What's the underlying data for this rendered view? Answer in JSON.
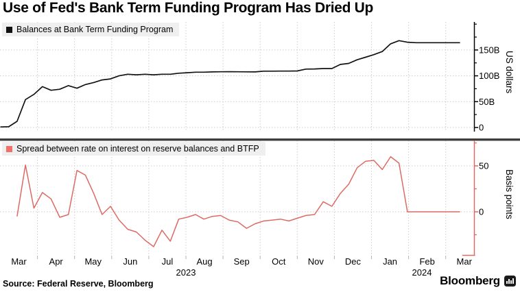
{
  "title": "Use of Fed's Bank Term Funding Program Has Dried Up",
  "panels": {
    "top": {
      "legend": "Balances at Bank Term Funding Program",
      "axis_title": "US dollars",
      "line_color": "#111111",
      "swatch_color": "#111111"
    },
    "bottom": {
      "legend": "Spread between rate on interest on reserve balances and BTFP",
      "axis_title": "Basis points",
      "line_color": "#dc6a63",
      "swatch_color": "#ef716a"
    }
  },
  "xaxis": {
    "months": [
      "Mar",
      "Apr",
      "May",
      "Jun",
      "Jul",
      "Aug",
      "Sep",
      "Oct",
      "Nov",
      "Dec",
      "Jan",
      "Feb",
      "Mar"
    ],
    "years": [
      "2023",
      "2024"
    ]
  },
  "footer": {
    "source": "Source: Federal Reserve, Bloomberg",
    "brand": "Bloomberg",
    "brand_icon": "bloomberg-terminal-icon"
  },
  "colors": {
    "grid": "#cccccc",
    "separator": "#3e3e3e",
    "axis_top": "#000000",
    "axis_bottom": "#dc6a63",
    "xtick": "#b3b3b3",
    "legend_bg": "#efefef"
  },
  "chart_data": [
    {
      "type": "line",
      "name": "Balances at Bank Term Funding Program",
      "unit": "USD billions",
      "ylabel": "US dollars",
      "ylim": [
        -8,
        204
      ],
      "yticks": [
        {
          "value": 0,
          "label": "0"
        },
        {
          "value": 50,
          "label": "50B"
        },
        {
          "value": 100,
          "label": "100B"
        },
        {
          "value": 150,
          "label": "150B"
        }
      ],
      "x": [
        "2023-03-01",
        "2023-03-08",
        "2023-03-15",
        "2023-03-22",
        "2023-03-29",
        "2023-04-05",
        "2023-04-12",
        "2023-04-19",
        "2023-04-26",
        "2023-05-03",
        "2023-05-10",
        "2023-05-17",
        "2023-05-24",
        "2023-05-31",
        "2023-06-07",
        "2023-06-14",
        "2023-06-21",
        "2023-06-28",
        "2023-07-05",
        "2023-07-12",
        "2023-07-19",
        "2023-07-26",
        "2023-08-02",
        "2023-08-09",
        "2023-08-16",
        "2023-08-23",
        "2023-08-30",
        "2023-09-06",
        "2023-09-13",
        "2023-09-20",
        "2023-09-27",
        "2023-10-04",
        "2023-10-11",
        "2023-10-18",
        "2023-10-25",
        "2023-11-01",
        "2023-11-08",
        "2023-11-15",
        "2023-11-22",
        "2023-11-29",
        "2023-12-06",
        "2023-12-13",
        "2023-12-20",
        "2023-12-27",
        "2024-01-03",
        "2024-01-10",
        "2024-01-17",
        "2024-01-24",
        "2024-01-31",
        "2024-02-07",
        "2024-02-14",
        "2024-02-21",
        "2024-02-28",
        "2024-03-06",
        "2024-03-13"
      ],
      "values": [
        1,
        1.5,
        12,
        54,
        64,
        79,
        72,
        74,
        81,
        76,
        83,
        87,
        92,
        94,
        100,
        103,
        102,
        103,
        102,
        103,
        103,
        105,
        106,
        107,
        107,
        107.5,
        107.8,
        108,
        107.8,
        107.7,
        107.6,
        109,
        109,
        109.1,
        109.2,
        109.4,
        113,
        113.2,
        114,
        114.1,
        122,
        124,
        131,
        136,
        141,
        147,
        162,
        168,
        165,
        164,
        164,
        164,
        164,
        164,
        164
      ]
    },
    {
      "type": "line",
      "name": "Spread between rate on interest on reserve balances and BTFP",
      "unit": "basis points",
      "ylabel": "Basis points",
      "ylim": [
        -49,
        79
      ],
      "yticks": [
        {
          "value": 0,
          "label": "0"
        },
        {
          "value": 50,
          "label": "50"
        }
      ],
      "x": [
        "2023-03-15",
        "2023-03-22",
        "2023-03-29",
        "2023-04-05",
        "2023-04-12",
        "2023-04-19",
        "2023-04-26",
        "2023-05-03",
        "2023-05-10",
        "2023-05-17",
        "2023-05-24",
        "2023-05-31",
        "2023-06-07",
        "2023-06-14",
        "2023-06-21",
        "2023-06-28",
        "2023-07-05",
        "2023-07-12",
        "2023-07-19",
        "2023-07-26",
        "2023-08-02",
        "2023-08-09",
        "2023-08-16",
        "2023-08-23",
        "2023-08-30",
        "2023-09-06",
        "2023-09-13",
        "2023-09-20",
        "2023-09-27",
        "2023-10-04",
        "2023-10-11",
        "2023-10-18",
        "2023-10-25",
        "2023-11-01",
        "2023-11-08",
        "2023-11-15",
        "2023-11-22",
        "2023-11-29",
        "2023-12-06",
        "2023-12-13",
        "2023-12-20",
        "2023-12-27",
        "2024-01-03",
        "2024-01-10",
        "2024-01-17",
        "2024-01-24",
        "2024-01-31",
        "2024-02-07",
        "2024-02-14",
        "2024-02-21",
        "2024-02-28",
        "2024-03-06",
        "2024-03-13"
      ],
      "values": [
        -5,
        51,
        4,
        21,
        14,
        -6,
        -3,
        45,
        40,
        20,
        -3,
        6,
        -9,
        -19,
        -22,
        -31,
        -38,
        -20,
        -32,
        -8,
        -6,
        -3,
        -8,
        -5,
        -4,
        -9,
        -11,
        -18,
        -13,
        -10,
        -9,
        -8,
        -10,
        -7,
        -4,
        -3,
        11,
        6,
        20,
        30,
        48,
        55,
        56,
        46,
        60,
        53,
        0,
        0,
        0,
        0,
        0,
        0,
        0
      ]
    }
  ]
}
